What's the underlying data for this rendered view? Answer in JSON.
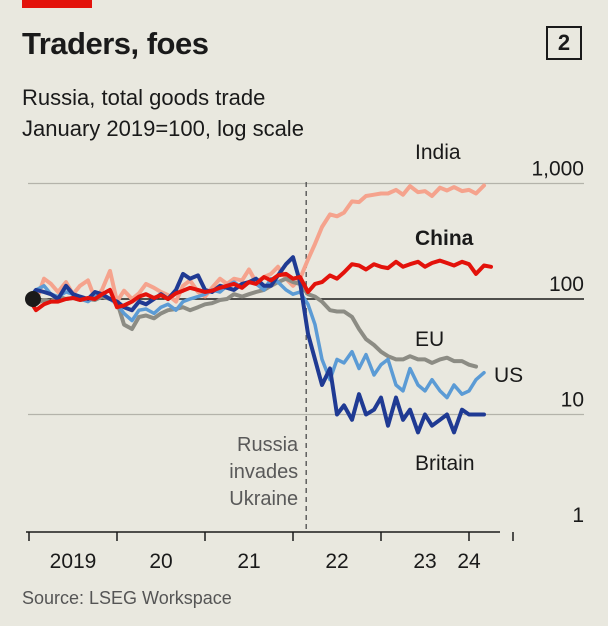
{
  "header": {
    "title": "Traders, foes",
    "chart_number": "2"
  },
  "subtitle": {
    "line1": "Russia, total goods trade",
    "line2": "January 2019=100, log scale"
  },
  "source": "Source: LSEG Workspace",
  "colors": {
    "brand_red": "#e3120b",
    "background": "#e9e8df",
    "India": "#f5a38d",
    "China": "#e3120b",
    "EU": "#8c8c84",
    "US": "#5b9bd5",
    "Britain": "#1f3a93"
  },
  "chart_data": {
    "type": "line",
    "title": "Traders, foes",
    "subtitle": "Russia, total goods trade, January 2019=100, log scale",
    "yscale": "log",
    "ylim": [
      1,
      1000
    ],
    "yticks": [
      1,
      10,
      100,
      1000
    ],
    "ytick_labels": [
      "1",
      "10",
      "100",
      "1,000"
    ],
    "xlim": [
      2019.0,
      2024.5
    ],
    "xticks": [
      2019,
      2020,
      2021,
      2022,
      2023,
      2024
    ],
    "xtick_labels": [
      "2019",
      "20",
      "21",
      "22",
      "23",
      "24"
    ],
    "grid": "horizontal",
    "event": {
      "x": 2022.15,
      "label_lines": [
        "Russia",
        "invades",
        "Ukraine"
      ]
    },
    "start_marker": {
      "x": 2019.0,
      "y": 100
    },
    "series": [
      {
        "name": "India",
        "bold": false,
        "x": [
          2019.0,
          2019.08,
          2019.17,
          2019.25,
          2019.33,
          2019.42,
          2019.5,
          2019.58,
          2019.67,
          2019.75,
          2019.83,
          2019.92,
          2020.0,
          2020.08,
          2020.17,
          2020.25,
          2020.33,
          2020.42,
          2020.5,
          2020.58,
          2020.67,
          2020.75,
          2020.83,
          2020.92,
          2021.0,
          2021.08,
          2021.17,
          2021.25,
          2021.33,
          2021.42,
          2021.5,
          2021.58,
          2021.67,
          2021.75,
          2021.83,
          2021.92,
          2022.0,
          2022.08,
          2022.17,
          2022.25,
          2022.33,
          2022.42,
          2022.5,
          2022.58,
          2022.67,
          2022.75,
          2022.83,
          2022.92,
          2023.0,
          2023.08,
          2023.17,
          2023.25,
          2023.33,
          2023.42,
          2023.5,
          2023.58,
          2023.67,
          2023.75,
          2023.83,
          2023.92,
          2024.0,
          2024.08,
          2024.17
        ],
        "y": [
          100,
          95,
          150,
          135,
          115,
          140,
          110,
          130,
          145,
          100,
          120,
          175,
          95,
          118,
          100,
          112,
          135,
          125,
          115,
          108,
          95,
          130,
          145,
          115,
          105,
          125,
          150,
          135,
          150,
          145,
          180,
          140,
          155,
          165,
          190,
          150,
          130,
          150,
          220,
          300,
          420,
          540,
          520,
          560,
          700,
          690,
          780,
          800,
          820,
          820,
          880,
          800,
          950,
          840,
          860,
          780,
          920,
          870,
          930,
          860,
          880,
          820,
          960
        ]
      },
      {
        "name": "China",
        "bold": true,
        "x": [
          2019.0,
          2019.08,
          2019.17,
          2019.25,
          2019.33,
          2019.42,
          2019.5,
          2019.58,
          2019.67,
          2019.75,
          2019.83,
          2019.92,
          2020.0,
          2020.08,
          2020.17,
          2020.25,
          2020.33,
          2020.42,
          2020.5,
          2020.58,
          2020.67,
          2020.75,
          2020.83,
          2020.92,
          2021.0,
          2021.08,
          2021.17,
          2021.25,
          2021.33,
          2021.42,
          2021.5,
          2021.58,
          2021.67,
          2021.75,
          2021.83,
          2021.92,
          2022.0,
          2022.08,
          2022.17,
          2022.25,
          2022.33,
          2022.42,
          2022.5,
          2022.58,
          2022.67,
          2022.75,
          2022.83,
          2022.92,
          2023.0,
          2023.08,
          2023.17,
          2023.25,
          2023.33,
          2023.42,
          2023.5,
          2023.58,
          2023.67,
          2023.75,
          2023.83,
          2023.92,
          2024.0,
          2024.08,
          2024.17,
          2024.25
        ],
        "y": [
          100,
          80,
          90,
          95,
          95,
          100,
          102,
          98,
          102,
          100,
          110,
          120,
          85,
          88,
          95,
          105,
          110,
          102,
          108,
          100,
          112,
          118,
          125,
          120,
          115,
          118,
          125,
          130,
          135,
          125,
          140,
          135,
          155,
          145,
          160,
          165,
          150,
          155,
          115,
          135,
          140,
          160,
          150,
          170,
          200,
          195,
          180,
          200,
          190,
          185,
          210,
          190,
          200,
          210,
          190,
          205,
          215,
          205,
          195,
          210,
          200,
          165,
          195,
          190
        ]
      },
      {
        "name": "EU",
        "bold": false,
        "x": [
          2019.0,
          2019.08,
          2019.17,
          2019.25,
          2019.33,
          2019.42,
          2019.5,
          2019.58,
          2019.67,
          2019.75,
          2019.83,
          2019.92,
          2020.0,
          2020.08,
          2020.17,
          2020.25,
          2020.33,
          2020.42,
          2020.5,
          2020.58,
          2020.67,
          2020.75,
          2020.83,
          2020.92,
          2021.0,
          2021.08,
          2021.17,
          2021.25,
          2021.33,
          2021.42,
          2021.5,
          2021.58,
          2021.67,
          2021.75,
          2021.83,
          2021.92,
          2022.0,
          2022.08,
          2022.17,
          2022.25,
          2022.33,
          2022.42,
          2022.5,
          2022.58,
          2022.67,
          2022.75,
          2022.83,
          2022.92,
          2023.0,
          2023.08,
          2023.17,
          2023.25,
          2023.33,
          2023.42,
          2023.5,
          2023.58,
          2023.67,
          2023.75,
          2023.83,
          2023.92,
          2024.0,
          2024.08
        ],
        "y": [
          100,
          92,
          98,
          95,
          105,
          100,
          102,
          98,
          100,
          98,
          105,
          100,
          95,
          60,
          55,
          70,
          72,
          68,
          75,
          80,
          82,
          85,
          80,
          85,
          90,
          92,
          98,
          100,
          110,
          105,
          110,
          115,
          120,
          130,
          140,
          150,
          140,
          135,
          110,
          105,
          95,
          80,
          78,
          78,
          70,
          55,
          45,
          40,
          35,
          32,
          30,
          30,
          32,
          30,
          30,
          28,
          30,
          31,
          29,
          29,
          27,
          26
        ]
      },
      {
        "name": "US",
        "bold": false,
        "x": [
          2019.0,
          2019.08,
          2019.17,
          2019.25,
          2019.33,
          2019.42,
          2019.5,
          2019.58,
          2019.67,
          2019.75,
          2019.83,
          2019.92,
          2020.0,
          2020.08,
          2020.17,
          2020.25,
          2020.33,
          2020.42,
          2020.5,
          2020.58,
          2020.67,
          2020.75,
          2020.83,
          2020.92,
          2021.0,
          2021.08,
          2021.17,
          2021.25,
          2021.33,
          2021.42,
          2021.5,
          2021.58,
          2021.67,
          2021.75,
          2021.83,
          2021.92,
          2022.0,
          2022.08,
          2022.17,
          2022.25,
          2022.33,
          2022.42,
          2022.5,
          2022.58,
          2022.67,
          2022.75,
          2022.83,
          2022.92,
          2023.0,
          2023.08,
          2023.17,
          2023.25,
          2023.33,
          2023.42,
          2023.5,
          2023.58,
          2023.67,
          2023.75,
          2023.83,
          2023.92,
          2024.0,
          2024.08,
          2024.17
        ],
        "y": [
          100,
          120,
          130,
          110,
          105,
          115,
          110,
          100,
          95,
          105,
          110,
          100,
          90,
          75,
          65,
          80,
          82,
          75,
          85,
          90,
          80,
          95,
          100,
          105,
          110,
          120,
          115,
          130,
          140,
          125,
          140,
          135,
          120,
          150,
          140,
          120,
          110,
          115,
          90,
          60,
          30,
          20,
          30,
          28,
          35,
          25,
          33,
          22,
          27,
          30,
          18,
          16,
          25,
          18,
          16,
          20,
          16,
          14,
          18,
          15,
          16,
          20,
          23
        ]
      },
      {
        "name": "Britain",
        "bold": false,
        "x": [
          2019.0,
          2019.08,
          2019.17,
          2019.25,
          2019.33,
          2019.42,
          2019.5,
          2019.58,
          2019.67,
          2019.75,
          2019.83,
          2019.92,
          2020.0,
          2020.08,
          2020.17,
          2020.25,
          2020.33,
          2020.42,
          2020.5,
          2020.58,
          2020.67,
          2020.75,
          2020.83,
          2020.92,
          2021.0,
          2021.08,
          2021.17,
          2021.25,
          2021.33,
          2021.42,
          2021.5,
          2021.58,
          2021.67,
          2021.75,
          2021.83,
          2021.92,
          2022.0,
          2022.08,
          2022.17,
          2022.25,
          2022.33,
          2022.42,
          2022.5,
          2022.58,
          2022.67,
          2022.75,
          2022.83,
          2022.92,
          2023.0,
          2023.08,
          2023.17,
          2023.25,
          2023.33,
          2023.42,
          2023.5,
          2023.58,
          2023.67,
          2023.75,
          2023.83,
          2023.92,
          2024.0,
          2024.08,
          2024.17
        ],
        "y": [
          100,
          120,
          115,
          110,
          100,
          130,
          110,
          105,
          100,
          115,
          110,
          100,
          95,
          85,
          80,
          95,
          90,
          100,
          110,
          100,
          120,
          165,
          150,
          160,
          120,
          115,
          130,
          125,
          120,
          135,
          140,
          150,
          130,
          130,
          160,
          200,
          230,
          140,
          50,
          30,
          18,
          25,
          10,
          12,
          9,
          15,
          10,
          11,
          14,
          8,
          14,
          9,
          11,
          7,
          10,
          8,
          9,
          10,
          7,
          11,
          10,
          10,
          10
        ]
      }
    ],
    "series_labels": {
      "India": "India",
      "China": "China",
      "EU": "EU",
      "US": "US",
      "Britain": "Britain"
    }
  }
}
